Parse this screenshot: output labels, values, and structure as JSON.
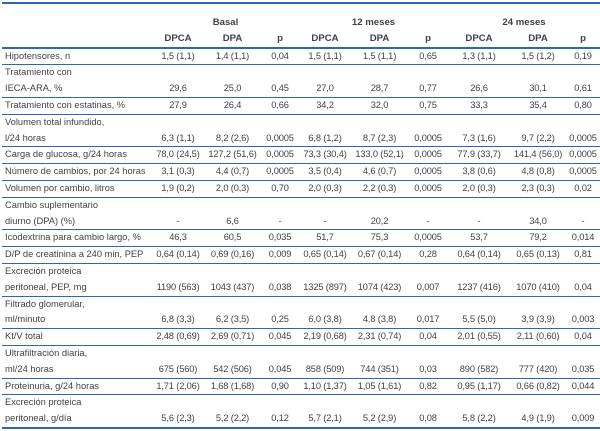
{
  "colors": {
    "rule_blue": "#2a69b2",
    "text": "#3f4245",
    "background": "#ffffff"
  },
  "table": {
    "header": {
      "groups": [
        {
          "label": "Basal"
        },
        {
          "label": "12 meses"
        },
        {
          "label": "24 meses"
        }
      ],
      "subcolumns": [
        "DPCA",
        "DPA",
        "p"
      ]
    },
    "rows": [
      {
        "label_lines": [
          "Hipotensores, n"
        ],
        "values": [
          "1,5 (1,1)",
          "1,4 (1,1)",
          "0,04",
          "1,5 (1,1)",
          "1,5 (1,1)",
          "0,65",
          "1,3 (1,1)",
          "1,5 (1,2)",
          "0,19"
        ]
      },
      {
        "label_lines": [
          "Tratamiento con",
          "IECA-ARA, %"
        ],
        "values": [
          "29,6",
          "25,0",
          "0,45",
          "27,0",
          "28,7",
          "0,77",
          "26,6",
          "30,1",
          "0,61"
        ]
      },
      {
        "label_lines": [
          "Tratamiento con estatinas, %"
        ],
        "values": [
          "27,9",
          "26,4",
          "0,66",
          "34,2",
          "32,0",
          "0,75",
          "33,3",
          "35,4",
          "0,80"
        ]
      },
      {
        "label_lines": [
          "Volumen total infundido,",
          "l/24 horas"
        ],
        "values": [
          "6,3 (1,1)",
          "8,2 (2,6)",
          "0,0005",
          "6,8 (1,2)",
          "8,7 (2,3)",
          "0,0005",
          "7,3 (1,6)",
          "9,7 (2,2)",
          "0,0005"
        ]
      },
      {
        "label_lines": [
          "Carga de glucosa, g/24 horas"
        ],
        "values": [
          "78,0 (24,5)",
          "127,2 (51,6)",
          "0,0005",
          "73,3 (30,4)",
          "133,0 (52,1)",
          "0,0005",
          "77,9 (33,7)",
          "141,4 (56,0)",
          "0,0005"
        ]
      },
      {
        "label_lines": [
          "Número de cambios, por 24 horas"
        ],
        "values": [
          "3,1 (0,3)",
          "4,4 (0,7)",
          "0,0005",
          "3,5 (0,4)",
          "4,6 (0,7)",
          "0,0005",
          "3,8 (0,6)",
          "4,8 (0,8)",
          "0,0005"
        ]
      },
      {
        "label_lines": [
          "Volumen por cambio, litros"
        ],
        "values": [
          "1,9 (0,2)",
          "2,0 (0,3)",
          "0,70",
          "2,0 (0,3)",
          "2,2 (0,3)",
          "0,0005",
          "2,0 (0,3)",
          "2,3 (0,3)",
          "0,02"
        ]
      },
      {
        "label_lines": [
          "Cambio suplementario",
          "diurno (DPA) (%)"
        ],
        "values": [
          "-",
          "6,6",
          "-",
          "-",
          "20,2",
          "-",
          "-",
          "34,0",
          "-"
        ]
      },
      {
        "label_lines": [
          "Icodextrina para cambio largo, %"
        ],
        "values": [
          "46,3",
          "60,5",
          "0,035",
          "51,7",
          "75,3",
          "0,0005",
          "53,7",
          "79,2",
          "0,014"
        ]
      },
      {
        "label_lines": [
          "D/P de creatinina a 240 min, PEP"
        ],
        "values": [
          "0,64 (0,14)",
          "0,69 (0,16)",
          "0,009",
          "0,65 (0,14)",
          "0,67 (0,14)",
          "0,28",
          "0,64 (0,14)",
          "0,65 (0,13)",
          "0,81"
        ]
      },
      {
        "label_lines": [
          "Excreción proteica",
          "peritoneal, PEP, mg"
        ],
        "values": [
          "1190 (563)",
          "1043 (437)",
          "0,038",
          "1325 (897)",
          "1074 (423)",
          "0,007",
          "1237 (416)",
          "1070 (410)",
          "0,04"
        ]
      },
      {
        "label_lines": [
          "Filtrado glomerular,",
          "ml/minuto"
        ],
        "values": [
          "6,8 (3,3)",
          "6,2 (3,5)",
          "0,25",
          "6,0 (3,8)",
          "4,8 (3,8)",
          "0,017",
          "5,5 (5,0)",
          "3,9 (3,9)",
          "0,003"
        ]
      },
      {
        "label_lines": [
          "Kt/V total"
        ],
        "values": [
          "2,48 (0,69)",
          "2,69 (0,71)",
          "0,045",
          "2,19 (0,68)",
          "2,31 (0,74)",
          "0,04",
          "2,01 (0,55)",
          "2,11 (0,60)",
          "0,04"
        ]
      },
      {
        "label_lines": [
          "Ultrafiltración diaria,",
          "ml/24 horas"
        ],
        "values": [
          "675 (560)",
          "542 (506)",
          "0,045",
          "858 (509)",
          "744 (351)",
          "0,03",
          "890 (582)",
          "777 (420)",
          "0,035"
        ]
      },
      {
        "label_lines": [
          "Proteinuria, g/24 horas"
        ],
        "values": [
          "1,71 (2,06)",
          "1,68 (1,68)",
          "0,90",
          "1,10 (1,37)",
          "1,05 (1,61)",
          "0,82",
          "0,95 (1,17)",
          "0,66 (0,82)",
          "0,044"
        ]
      },
      {
        "label_lines": [
          "Excreción proteica",
          "peritoneal, g/día"
        ],
        "values": [
          "5,6 (2,3)",
          "5,2 (2,2)",
          "0,12",
          "5,7 (2,1)",
          "5,2 (2,9)",
          "0,08",
          "5,8 (2,2)",
          "4,9 (1,9)",
          "0,009"
        ]
      }
    ]
  }
}
